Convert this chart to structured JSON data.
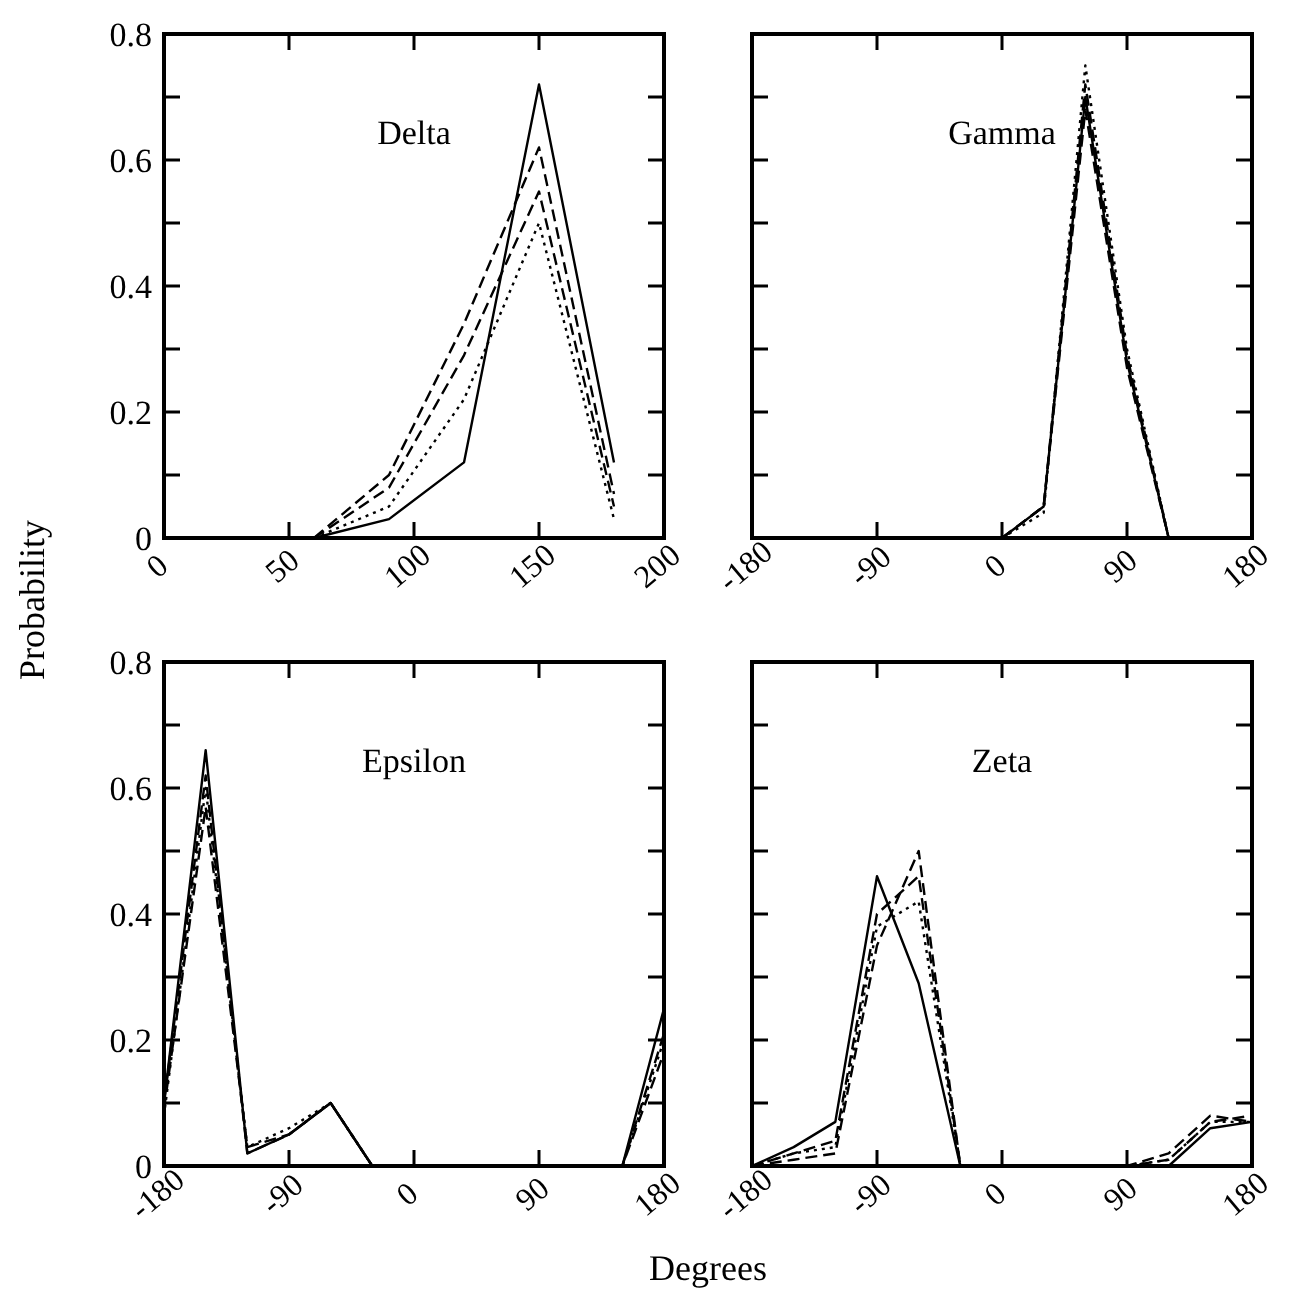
{
  "chart_data": [
    {
      "type": "line",
      "title": "Delta",
      "ylabel": "Probability",
      "xlim": [
        0,
        200
      ],
      "xticks": [
        0,
        50,
        100,
        150,
        200
      ],
      "ylim": [
        0,
        0.8
      ],
      "yticks": [
        0,
        {
          "value": 0.1,
          "label": null
        },
        0.2,
        {
          "value": 0.3,
          "label": null
        },
        0.4,
        {
          "value": 0.5,
          "label": null
        },
        0.6,
        {
          "value": 0.7,
          "label": null
        },
        0.8
      ],
      "x": [
        60,
        90,
        120,
        150,
        180
      ],
      "series": [
        {
          "color": "#000000",
          "line_style": "solid",
          "values": [
            0,
            0.03,
            0.12,
            0.72,
            0.12
          ]
        },
        {
          "color": "#000000",
          "line_style": "dotted",
          "values": [
            0,
            0.05,
            0.22,
            0.5,
            0.03
          ]
        },
        {
          "color": "#000000",
          "line_style": "dashed",
          "values": [
            0,
            0.08,
            0.29,
            0.55,
            0.05
          ]
        },
        {
          "color": "#000000",
          "line_style": "dashed",
          "values": [
            0,
            0.1,
            0.34,
            0.62,
            0.07
          ]
        }
      ]
    },
    {
      "type": "line",
      "title": "Gamma",
      "tick_labels": "x",
      "xlim": [
        -180,
        180
      ],
      "xticks": [
        -180,
        -90,
        0,
        90,
        180
      ],
      "ylim": [
        0,
        0.8
      ],
      "yticks": [
        0,
        0.1,
        0.2,
        0.3,
        0.4,
        0.5,
        0.6,
        0.7,
        0.8
      ],
      "x": [
        0,
        30,
        60,
        90,
        120
      ],
      "series": [
        {
          "color": "#000000",
          "line_style": "solid",
          "values": [
            0,
            0.05,
            0.7,
            0.28,
            0
          ]
        },
        {
          "color": "#000000",
          "line_style": "dotted",
          "values": [
            0,
            0.04,
            0.75,
            0.3,
            0
          ]
        },
        {
          "color": "#000000",
          "line_style": "dashed",
          "values": [
            0,
            0.05,
            0.68,
            0.27,
            0
          ]
        },
        {
          "color": "#000000",
          "line_style": "dashed",
          "values": [
            0,
            0.05,
            0.72,
            0.29,
            0
          ]
        }
      ]
    },
    {
      "type": "line",
      "title": "Epsilon",
      "xlabel": "Degrees",
      "xlim": [
        -180,
        180
      ],
      "xticks": [
        -180,
        -90,
        0,
        90,
        180
      ],
      "ylim": [
        0,
        0.8
      ],
      "yticks": [
        0,
        {
          "value": 0.1,
          "label": null
        },
        0.2,
        {
          "value": 0.3,
          "label": null
        },
        0.4,
        {
          "value": 0.5,
          "label": null
        },
        0.6,
        {
          "value": 0.7,
          "label": null
        },
        0.8
      ],
      "x": [
        -180,
        -150,
        -120,
        -90,
        -60,
        -30,
        0,
        30,
        60,
        90,
        120,
        150,
        180
      ],
      "series": [
        {
          "color": "#000000",
          "line_style": "solid",
          "values": [
            0.1,
            0.66,
            0.02,
            0.05,
            0.1,
            0,
            0,
            0,
            0,
            0,
            0,
            0,
            0.25
          ]
        },
        {
          "color": "#000000",
          "line_style": "dotted",
          "values": [
            0.08,
            0.6,
            0.03,
            0.06,
            0.1,
            0,
            0,
            0,
            0,
            0,
            0,
            0,
            0.2
          ]
        },
        {
          "color": "#000000",
          "line_style": "dashed",
          "values": [
            0.09,
            0.57,
            0.03,
            0.05,
            0.1,
            0,
            0,
            0,
            0,
            0,
            0,
            0,
            0.18
          ]
        },
        {
          "color": "#000000",
          "line_style": "dashed",
          "values": [
            0.1,
            0.62,
            0.02,
            0.05,
            0.1,
            0,
            0,
            0,
            0,
            0,
            0,
            0,
            0.21
          ]
        }
      ]
    },
    {
      "type": "line",
      "title": "Zeta",
      "tick_labels": "x",
      "xlim": [
        -180,
        180
      ],
      "xticks": [
        -180,
        -90,
        0,
        90,
        180
      ],
      "ylim": [
        0,
        0.8
      ],
      "yticks": [
        0,
        0.1,
        0.2,
        0.3,
        0.4,
        0.5,
        0.6,
        0.7,
        0.8
      ],
      "x": [
        -180,
        -150,
        -120,
        -90,
        -60,
        -30,
        0,
        30,
        60,
        90,
        120,
        150,
        180
      ],
      "series": [
        {
          "color": "#000000",
          "line_style": "solid",
          "values": [
            0,
            0.03,
            0.07,
            0.46,
            0.29,
            0,
            0,
            0,
            0,
            0,
            0,
            0.06,
            0.07
          ]
        },
        {
          "color": "#000000",
          "line_style": "dotted",
          "values": [
            0,
            0.02,
            0.03,
            0.38,
            0.42,
            0,
            0,
            0,
            0,
            0,
            0.01,
            0.07,
            0.07
          ]
        },
        {
          "color": "#000000",
          "line_style": "dashed",
          "values": [
            0,
            0.01,
            0.02,
            0.35,
            0.5,
            0,
            0,
            0,
            0,
            0,
            0.02,
            0.08,
            0.07
          ]
        },
        {
          "color": "#000000",
          "line_style": "dashed",
          "values": [
            0,
            0.02,
            0.04,
            0.4,
            0.46,
            0,
            0,
            0,
            0,
            0,
            0.01,
            0.07,
            0.08
          ]
        }
      ]
    }
  ]
}
